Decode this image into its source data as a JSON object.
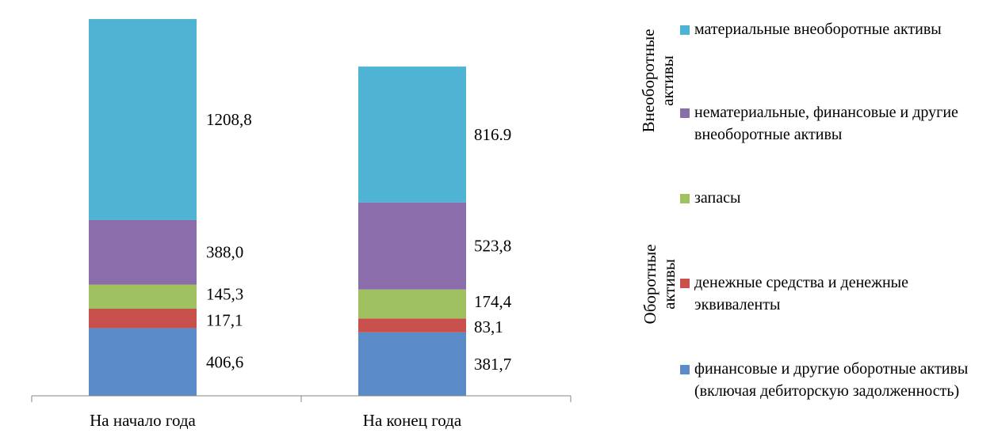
{
  "chart_data": {
    "type": "bar",
    "stacked": true,
    "categories": [
      "На начало года",
      "На конец года"
    ],
    "series": [
      {
        "name": "финансовые и другие оборотные активы (включая дебиторскую задолженность)",
        "values": [
          406.6,
          381.7
        ],
        "labels": [
          "406,6",
          "381,7"
        ],
        "color": "#5B8BC9"
      },
      {
        "name": "денежные средства и денежные эквиваленты",
        "values": [
          117.1,
          83.1
        ],
        "labels": [
          "117,1",
          "83,1"
        ],
        "color": "#C9514D"
      },
      {
        "name": "запасы",
        "values": [
          145.3,
          174.4
        ],
        "labels": [
          "145,3",
          "174,4"
        ],
        "color": "#A0C160"
      },
      {
        "name": "нематериальные, финансовые и другие внеоборотные активы",
        "values": [
          388.0,
          523.8
        ],
        "labels": [
          "388,0",
          "523,8"
        ],
        "color": "#8A6DAA"
      },
      {
        "name": "материальные внеоборотные активы",
        "values": [
          1208.8,
          816.9
        ],
        "labels": [
          "1208,8",
          "816.9"
        ],
        "color": "#4FB3D3"
      }
    ],
    "ylim": [
      0,
      2266
    ],
    "legend_position": "right",
    "legend_groups": [
      "Внеоборотные активы",
      "Оборотные активы"
    ],
    "grid": false
  }
}
